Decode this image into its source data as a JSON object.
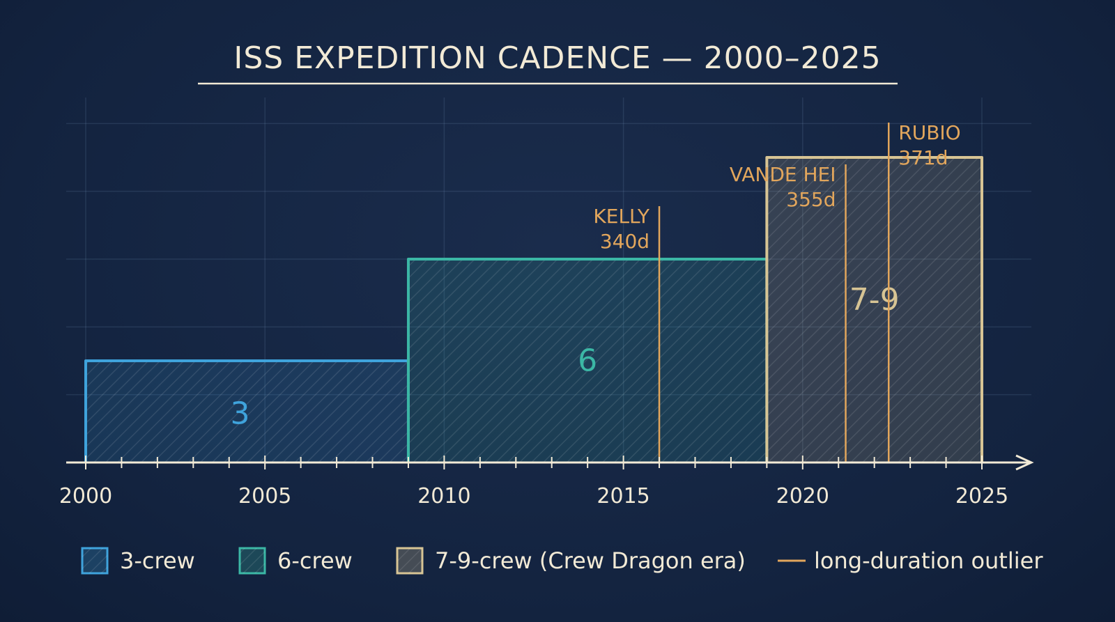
{
  "chart_data": {
    "type": "area",
    "title": "ISS EXPEDITION CADENCE — 2000–2025",
    "xlabel": "",
    "ylabel": "",
    "xlim": [
      2000,
      2025
    ],
    "x_ticks": [
      2000,
      2005,
      2010,
      2015,
      2020,
      2025
    ],
    "x_tick_labels": [
      "2000",
      "2005",
      "2010",
      "2015",
      "2020",
      "2025"
    ],
    "ylim": [
      0,
      12
    ],
    "grid": true,
    "legend_position": "bottom",
    "series": [
      {
        "name": "3-crew",
        "x_start": 2000,
        "x_end": 2009,
        "value": 3,
        "label": "3",
        "color": "#3fa3dc"
      },
      {
        "name": "6-crew",
        "x_start": 2009,
        "x_end": 2019,
        "value": 6,
        "label": "6",
        "color": "#3bb7a5"
      },
      {
        "name": "7-9-crew (Crew Dragon era)",
        "x_start": 2019,
        "x_end": 2025,
        "value": 9,
        "label": "7-9",
        "color": "#d7c494"
      }
    ],
    "outliers": [
      {
        "x": 2016,
        "name": "KELLY",
        "duration": "340d"
      },
      {
        "x": 2021.2,
        "name": "VANDE HEI",
        "duration": "355d"
      },
      {
        "x": 2022.4,
        "name": "RUBIO",
        "duration": "371d"
      }
    ],
    "outlier_legend": "long-duration outlier",
    "outlier_color": "#e2a65c"
  }
}
